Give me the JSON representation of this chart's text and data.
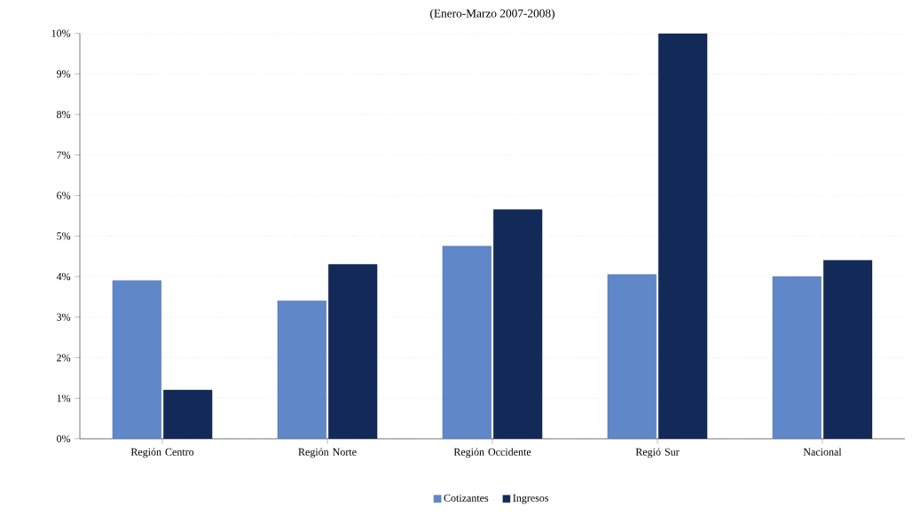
{
  "chart_data": {
    "type": "bar",
    "title": "(Enero-Marzo 2007-2008)",
    "categories": [
      "Región Centro",
      "Región Norte",
      "Región Occidente",
      "Regió Sur",
      "Nacional"
    ],
    "series": [
      {
        "name": "Cotizantes",
        "color": "#6088c8",
        "values": [
          3.9,
          3.4,
          4.75,
          4.05,
          4.0
        ]
      },
      {
        "name": "Ingresos",
        "color": "#132a58",
        "values": [
          1.2,
          4.3,
          5.65,
          10.0,
          4.4
        ]
      }
    ],
    "ylim": [
      0,
      10
    ],
    "yticks": [
      {
        "value": 0,
        "label": "0%"
      },
      {
        "value": 1,
        "label": "1%"
      },
      {
        "value": 2,
        "label": "2%"
      },
      {
        "value": 3,
        "label": "3%"
      },
      {
        "value": 4,
        "label": "4%"
      },
      {
        "value": 5,
        "label": "5%"
      },
      {
        "value": 6,
        "label": "6%"
      },
      {
        "value": 7,
        "label": "7%"
      },
      {
        "value": 8,
        "label": "8%"
      },
      {
        "value": 9,
        "label": "9%"
      },
      {
        "value": 10,
        "label": "10%"
      }
    ],
    "grid": "y",
    "legend": "bottom"
  }
}
